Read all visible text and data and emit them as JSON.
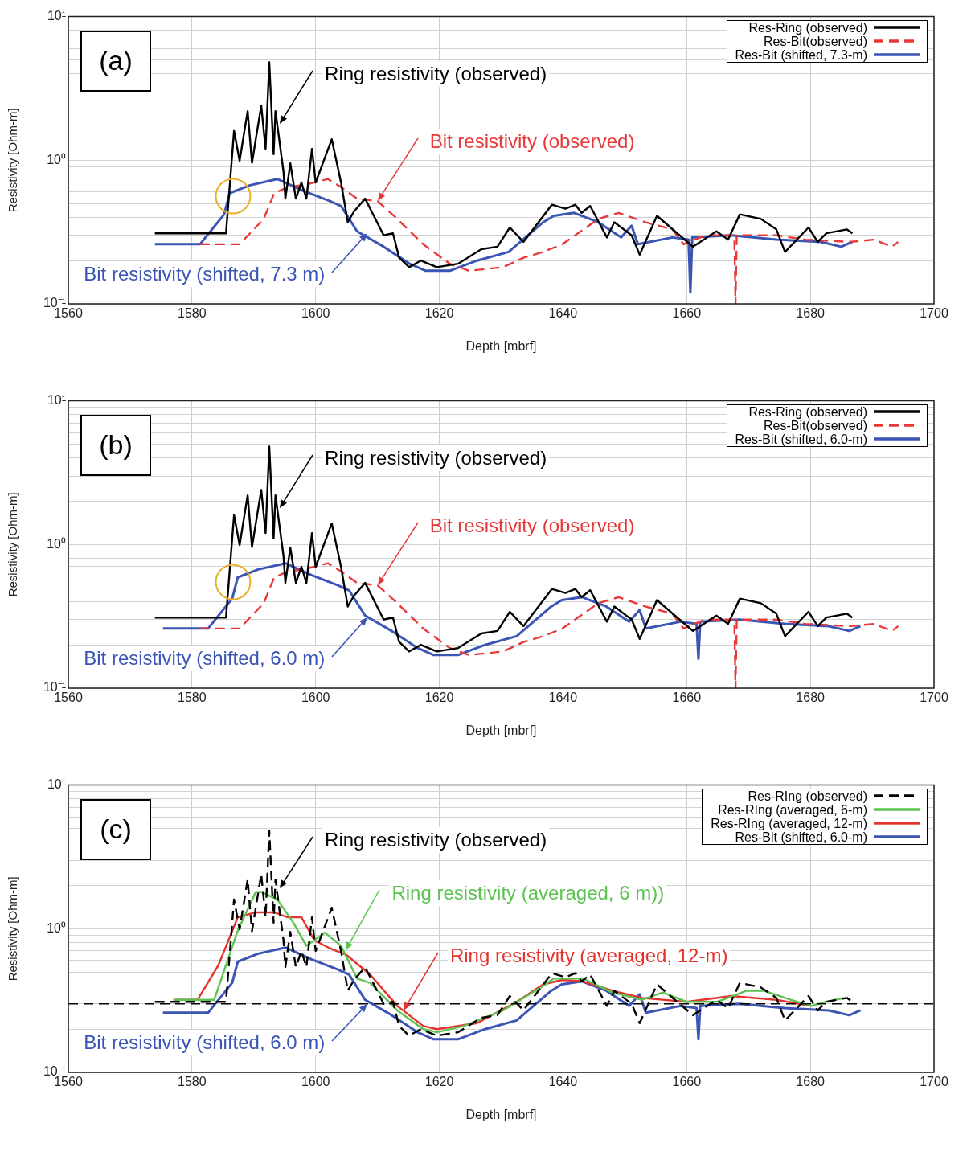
{
  "chart_data": [
    {
      "type": "line",
      "xlabel": "Depth [mbrf]",
      "ylabel": "Resistivity [Ohm-m]",
      "xlim": [
        1560,
        1700
      ],
      "xticks": [
        1560,
        1580,
        1600,
        1620,
        1640,
        1660,
        1680,
        1700
      ],
      "ylim": [
        0.1,
        10
      ],
      "log": "y",
      "grid": true,
      "legend": "top right",
      "marker": "none",
      "yticks": [
        {
          "value": 0.1,
          "label": "10⁻¹"
        },
        {
          "value": 0.2,
          "label": null
        },
        {
          "value": 0.3,
          "label": null
        },
        {
          "value": 0.4,
          "label": null
        },
        {
          "value": 0.5,
          "label": null
        },
        {
          "value": 0.6,
          "label": null
        },
        {
          "value": 0.7,
          "label": null
        },
        {
          "value": 0.8,
          "label": null
        },
        {
          "value": 0.9,
          "label": null
        },
        {
          "value": 1,
          "label": "10⁰"
        },
        {
          "value": 2,
          "label": null
        },
        {
          "value": 3,
          "label": null
        },
        {
          "value": 4,
          "label": null
        },
        {
          "value": 5,
          "label": null
        },
        {
          "value": 6,
          "label": null
        },
        {
          "value": 7,
          "label": null
        },
        {
          "value": 8,
          "label": null
        },
        {
          "value": 9,
          "label": null
        },
        {
          "value": 10,
          "label": "10¹"
        }
      ],
      "series": [
        {
          "name": "Res-Ring (observed)",
          "color": "#000000",
          "line_style": "solid",
          "x": [
            1574,
            1585.5,
            1586.8,
            1587.7,
            1589,
            1589.7,
            1591.2,
            1591.9,
            1592.5,
            1593.2,
            1593.5,
            1594.8,
            1595.1,
            1595.9,
            1596.8,
            1597.7,
            1598.5,
            1599.4,
            1600,
            1602.6,
            1604.1,
            1605.2,
            1606.2,
            1608,
            1611,
            1612.5,
            1613.5,
            1615.1,
            1617,
            1619.6,
            1623,
            1626.8,
            1629.4,
            1631.4,
            1633.6,
            1638.2,
            1640.4,
            1642,
            1643,
            1644.4,
            1647.1,
            1648.3,
            1651.1,
            1652.4,
            1655.2,
            1658.1,
            1661,
            1664.8,
            1666.7,
            1668.6,
            1672,
            1674.5,
            1675.9,
            1679.7,
            1681.2,
            1682.6,
            1685.9,
            1686.8
          ],
          "values": [
            0.31,
            0.31,
            1.6,
            0.99,
            2.2,
            0.96,
            2.4,
            1.2,
            4.8,
            1.1,
            2.2,
            0.83,
            0.54,
            0.95,
            0.54,
            0.7,
            0.54,
            1.2,
            0.7,
            1.4,
            0.7,
            0.37,
            0.44,
            0.54,
            0.3,
            0.31,
            0.21,
            0.18,
            0.2,
            0.18,
            0.19,
            0.24,
            0.25,
            0.34,
            0.27,
            0.49,
            0.46,
            0.49,
            0.43,
            0.48,
            0.29,
            0.37,
            0.3,
            0.22,
            0.41,
            0.32,
            0.25,
            0.32,
            0.28,
            0.42,
            0.39,
            0.33,
            0.23,
            0.34,
            0.27,
            0.31,
            0.33,
            0.31
          ]
        },
        {
          "name": "Res-Bit(observed)",
          "color": "#e8393a",
          "line_style": "dashed",
          "x": [
            1581.3,
            1587.7,
            1591.6,
            1593.3,
            1595.5,
            1598,
            1602,
            1604.1,
            1606.7,
            1610,
            1613.2,
            1617.4,
            1621.7,
            1624.8,
            1630.3,
            1633.7,
            1636.8,
            1639.9,
            1645.7,
            1649,
            1653.3,
            1657.7,
            1659.5,
            1663,
            1667.7,
            1667.9,
            1668.1,
            1674.5,
            1679.2,
            1686.5,
            1690.3,
            1693.2,
            1694.2
          ],
          "values": [
            0.26,
            0.26,
            0.39,
            0.59,
            0.65,
            0.67,
            0.74,
            0.65,
            0.54,
            0.52,
            0.39,
            0.26,
            0.19,
            0.17,
            0.18,
            0.21,
            0.23,
            0.26,
            0.39,
            0.43,
            0.37,
            0.33,
            0.26,
            0.3,
            0.3,
            0.1,
            0.3,
            0.3,
            0.28,
            0.27,
            0.28,
            0.25,
            0.27
          ]
        },
        {
          "name": "Res-Bit (shifted, 7.3-m)",
          "color": "#3a55b4",
          "line_style": "solid",
          "x": [
            1574,
            1581.3,
            1585.2,
            1586.1,
            1589.4,
            1593.8,
            1598.1,
            1602.3,
            1604.1,
            1606.7,
            1611,
            1615.2,
            1617.8,
            1621.7,
            1626.1,
            1631.2,
            1636.8,
            1638.5,
            1641.8,
            1645.7,
            1649.4,
            1651.1,
            1652.1,
            1657.7,
            1660.3,
            1660.6,
            1660.9,
            1667.2,
            1674.5,
            1681.7,
            1685,
            1686.8
          ],
          "values": [
            0.26,
            0.26,
            0.42,
            0.59,
            0.67,
            0.74,
            0.61,
            0.52,
            0.48,
            0.32,
            0.25,
            0.19,
            0.17,
            0.17,
            0.2,
            0.23,
            0.37,
            0.41,
            0.43,
            0.37,
            0.29,
            0.35,
            0.26,
            0.29,
            0.28,
            0.12,
            0.29,
            0.3,
            0.28,
            0.27,
            0.25,
            0.27
          ]
        }
      ],
      "annotations": [
        {
          "text": "Ring resistivity (observed)",
          "x": 1594.2,
          "y": 1.8
        },
        {
          "text": "Bit resistivity (observed)",
          "x": 1610,
          "y": 0.52
        },
        {
          "text": "Bit resistivity (shifted, 7.3 m)",
          "x": 1608.4,
          "y": 0.31
        },
        "(a)"
      ]
    },
    {
      "type": "line",
      "xlabel": "Depth [mbrf]",
      "ylabel": "Resistivity [Ohm-m]",
      "xlim": [
        1560,
        1700
      ],
      "xticks": [
        1560,
        1580,
        1600,
        1620,
        1640,
        1660,
        1680,
        1700
      ],
      "ylim": [
        0.1,
        10
      ],
      "log": "y",
      "grid": true,
      "legend": "top right",
      "marker": "none",
      "yticks": [
        {
          "value": 0.1,
          "label": "10⁻¹"
        },
        {
          "value": 0.2,
          "label": null
        },
        {
          "value": 0.3,
          "label": null
        },
        {
          "value": 0.4,
          "label": null
        },
        {
          "value": 0.5,
          "label": null
        },
        {
          "value": 0.6,
          "label": null
        },
        {
          "value": 0.7,
          "label": null
        },
        {
          "value": 0.8,
          "label": null
        },
        {
          "value": 0.9,
          "label": null
        },
        {
          "value": 1,
          "label": "10⁰"
        },
        {
          "value": 2,
          "label": null
        },
        {
          "value": 3,
          "label": null
        },
        {
          "value": 4,
          "label": null
        },
        {
          "value": 5,
          "label": null
        },
        {
          "value": 6,
          "label": null
        },
        {
          "value": 7,
          "label": null
        },
        {
          "value": 8,
          "label": null
        },
        {
          "value": 9,
          "label": null
        },
        {
          "value": 10,
          "label": "10¹"
        }
      ],
      "series": [
        {
          "name": "Res-Ring (observed)",
          "color": "#000000",
          "line_style": "solid",
          "x": [
            1574,
            1585.5,
            1586.8,
            1587.7,
            1589,
            1589.7,
            1591.2,
            1591.9,
            1592.5,
            1593.2,
            1593.5,
            1594.8,
            1595.1,
            1595.9,
            1596.8,
            1597.7,
            1598.5,
            1599.4,
            1600,
            1602.6,
            1604.1,
            1605.2,
            1606.2,
            1608,
            1611,
            1612.5,
            1613.5,
            1615.1,
            1617,
            1619.6,
            1623,
            1626.8,
            1629.4,
            1631.4,
            1633.6,
            1638.2,
            1640.4,
            1642,
            1643,
            1644.4,
            1647.1,
            1648.3,
            1651.1,
            1652.4,
            1655.2,
            1658.1,
            1661,
            1664.8,
            1666.7,
            1668.6,
            1672,
            1674.5,
            1675.9,
            1679.7,
            1681.2,
            1682.6,
            1685.9,
            1686.8
          ],
          "values": [
            0.31,
            0.31,
            1.6,
            0.99,
            2.2,
            0.96,
            2.4,
            1.2,
            4.8,
            1.1,
            2.2,
            0.83,
            0.54,
            0.95,
            0.54,
            0.7,
            0.54,
            1.2,
            0.7,
            1.4,
            0.7,
            0.37,
            0.44,
            0.54,
            0.3,
            0.31,
            0.21,
            0.18,
            0.2,
            0.18,
            0.19,
            0.24,
            0.25,
            0.34,
            0.27,
            0.49,
            0.46,
            0.49,
            0.43,
            0.48,
            0.29,
            0.37,
            0.3,
            0.22,
            0.41,
            0.32,
            0.25,
            0.32,
            0.28,
            0.42,
            0.39,
            0.33,
            0.23,
            0.34,
            0.27,
            0.31,
            0.33,
            0.31
          ]
        },
        {
          "name": "Res-Bit(observed)",
          "color": "#e8393a",
          "line_style": "dashed",
          "x": [
            1581.3,
            1587.7,
            1591.6,
            1593.3,
            1595.5,
            1598,
            1602,
            1604.1,
            1606.7,
            1610,
            1613.2,
            1617.4,
            1621.7,
            1624.8,
            1630.3,
            1633.7,
            1636.8,
            1639.9,
            1645.7,
            1649,
            1653.3,
            1657.7,
            1659.5,
            1663,
            1667.7,
            1667.9,
            1668.1,
            1674.5,
            1679.2,
            1686.5,
            1690.3,
            1693.2,
            1694.2
          ],
          "values": [
            0.26,
            0.26,
            0.39,
            0.59,
            0.65,
            0.67,
            0.74,
            0.65,
            0.54,
            0.52,
            0.39,
            0.26,
            0.19,
            0.17,
            0.18,
            0.21,
            0.23,
            0.26,
            0.39,
            0.43,
            0.37,
            0.33,
            0.26,
            0.3,
            0.3,
            0.1,
            0.3,
            0.3,
            0.28,
            0.27,
            0.28,
            0.25,
            0.27
          ]
        },
        {
          "name": "Res-Bit (shifted, 6.0-m)",
          "color": "#3a55b4",
          "line_style": "solid",
          "x": [
            1575.3,
            1582.6,
            1586.5,
            1587.4,
            1590.7,
            1595.1,
            1599.4,
            1603.6,
            1605.4,
            1608,
            1612.3,
            1616.5,
            1619.1,
            1623,
            1627.4,
            1632.5,
            1638.1,
            1639.8,
            1643.1,
            1647,
            1650.7,
            1652.4,
            1653.4,
            1659,
            1661.6,
            1661.9,
            1662.2,
            1668.5,
            1675.8,
            1683,
            1686.3,
            1688.1
          ],
          "values": [
            0.26,
            0.26,
            0.42,
            0.59,
            0.67,
            0.74,
            0.61,
            0.52,
            0.48,
            0.32,
            0.25,
            0.19,
            0.17,
            0.17,
            0.2,
            0.23,
            0.37,
            0.41,
            0.43,
            0.37,
            0.29,
            0.35,
            0.26,
            0.29,
            0.28,
            0.16,
            0.29,
            0.3,
            0.28,
            0.27,
            0.25,
            0.27
          ]
        }
      ],
      "annotations": [
        {
          "text": "Ring resistivity (observed)",
          "x": 1594.2,
          "y": 1.8
        },
        {
          "text": "Bit resistivity (observed)",
          "x": 1610,
          "y": 0.52
        },
        {
          "text": "Bit resistivity (shifted, 6.0 m)",
          "x": 1608.4,
          "y": 0.31
        },
        "(b)"
      ]
    },
    {
      "type": "line",
      "xlabel": "Depth [mbrf]",
      "ylabel": "Resistivity [Ohm-m]",
      "xlim": [
        1560,
        1700
      ],
      "xticks": [
        1560,
        1580,
        1600,
        1620,
        1640,
        1660,
        1680,
        1700
      ],
      "ylim": [
        0.1,
        10
      ],
      "log": "y",
      "grid": true,
      "legend": "top right",
      "marker": "none",
      "yticks": [
        {
          "value": 0.1,
          "label": "10⁻¹"
        },
        {
          "value": 0.2,
          "label": null
        },
        {
          "value": 0.3,
          "label": null
        },
        {
          "value": 0.4,
          "label": null
        },
        {
          "value": 0.5,
          "label": null
        },
        {
          "value": 0.6,
          "label": null
        },
        {
          "value": 0.7,
          "label": null
        },
        {
          "value": 0.8,
          "label": null
        },
        {
          "value": 0.9,
          "label": null
        },
        {
          "value": 1,
          "label": "10⁰"
        },
        {
          "value": 2,
          "label": null
        },
        {
          "value": 3,
          "label": null
        },
        {
          "value": 4,
          "label": null
        },
        {
          "value": 5,
          "label": null
        },
        {
          "value": 6,
          "label": null
        },
        {
          "value": 7,
          "label": null
        },
        {
          "value": 8,
          "label": null
        },
        {
          "value": 9,
          "label": null
        },
        {
          "value": 10,
          "label": "10¹"
        }
      ],
      "ref_lines": [
        {
          "axis": "y",
          "value": 0.3,
          "color": "#000000",
          "line_style": "dashed"
        }
      ],
      "series": [
        {
          "name": "Res-RIng (observed)",
          "color": "#000000",
          "line_style": "dashed",
          "x": [
            1574,
            1585.5,
            1586.8,
            1587.7,
            1589,
            1589.7,
            1591.2,
            1591.9,
            1592.5,
            1593.2,
            1593.5,
            1594.8,
            1595.1,
            1595.9,
            1596.8,
            1597.7,
            1598.5,
            1599.4,
            1600,
            1602.6,
            1604.1,
            1605.2,
            1606.2,
            1608,
            1611,
            1612.5,
            1613.5,
            1615.1,
            1617,
            1619.6,
            1623,
            1626.8,
            1629.4,
            1631.4,
            1633.6,
            1638.2,
            1640.4,
            1642,
            1643,
            1644.4,
            1647.1,
            1648.3,
            1651.1,
            1652.4,
            1655.2,
            1658.1,
            1661,
            1664.8,
            1666.7,
            1668.6,
            1672,
            1674.5,
            1675.9,
            1679.7,
            1681.2,
            1682.6,
            1685.9,
            1686.8
          ],
          "values": [
            0.31,
            0.31,
            1.6,
            0.99,
            2.2,
            0.96,
            2.4,
            1.2,
            4.8,
            1.1,
            2.2,
            0.83,
            0.54,
            0.95,
            0.54,
            0.7,
            0.54,
            1.2,
            0.7,
            1.4,
            0.7,
            0.37,
            0.44,
            0.54,
            0.3,
            0.31,
            0.21,
            0.18,
            0.2,
            0.18,
            0.19,
            0.24,
            0.25,
            0.34,
            0.27,
            0.49,
            0.46,
            0.49,
            0.43,
            0.48,
            0.29,
            0.37,
            0.3,
            0.22,
            0.41,
            0.32,
            0.25,
            0.32,
            0.28,
            0.42,
            0.39,
            0.33,
            0.23,
            0.34,
            0.27,
            0.31,
            0.33,
            0.31
          ]
        },
        {
          "name": "Res-RIng (averaged, 6-m)",
          "color": "#5cc250",
          "line_style": "solid",
          "x": [
            1577,
            1583.6,
            1587.4,
            1590.3,
            1591.2,
            1593.8,
            1596.4,
            1598.5,
            1601.5,
            1604.1,
            1606.7,
            1608.8,
            1613.2,
            1617.4,
            1619.6,
            1623.9,
            1630.3,
            1636.8,
            1638.5,
            1643.2,
            1648,
            1652.8,
            1656.1,
            1660,
            1665,
            1669.7,
            1672.5,
            1676.8,
            1680.1,
            1682.6,
            1685.5
          ],
          "values": [
            0.32,
            0.32,
            0.97,
            1.8,
            1.8,
            1.6,
            1.1,
            0.76,
            0.94,
            0.76,
            0.45,
            0.42,
            0.27,
            0.2,
            0.19,
            0.21,
            0.27,
            0.4,
            0.45,
            0.45,
            0.36,
            0.32,
            0.36,
            0.31,
            0.31,
            0.37,
            0.37,
            0.32,
            0.29,
            0.31,
            0.33
          ]
        },
        {
          "name": "Res-RIng (averaged, 12-m)",
          "color": "#e5322d",
          "line_style": "solid",
          "x": [
            1577,
            1580.9,
            1584.3,
            1587.4,
            1590.3,
            1593.3,
            1595.5,
            1597.7,
            1599.8,
            1602.3,
            1604.9,
            1608.8,
            1613.2,
            1617.4,
            1619.6,
            1626.1,
            1632.5,
            1636.8,
            1639.9,
            1643.2,
            1648,
            1652.8,
            1660,
            1667.2,
            1674.5,
            1680.1
          ],
          "values": [
            0.32,
            0.32,
            0.56,
            1.2,
            1.3,
            1.3,
            1.2,
            1.2,
            0.83,
            0.73,
            0.66,
            0.48,
            0.29,
            0.21,
            0.2,
            0.22,
            0.31,
            0.41,
            0.44,
            0.43,
            0.37,
            0.33,
            0.31,
            0.34,
            0.32,
            0.29
          ]
        },
        {
          "name": "Res-Bit (shifted, 6.0-m)",
          "color": "#3a55b4",
          "line_style": "solid",
          "x": [
            1575.3,
            1582.6,
            1586.5,
            1587.4,
            1590.7,
            1595.1,
            1599.4,
            1603.6,
            1605.4,
            1608,
            1612.3,
            1616.5,
            1619.1,
            1623,
            1627.4,
            1632.5,
            1638.1,
            1639.8,
            1643.1,
            1647,
            1650.7,
            1652.4,
            1653.4,
            1659,
            1661.6,
            1661.9,
            1662.2,
            1668.5,
            1675.8,
            1683,
            1686.3,
            1688.1
          ],
          "values": [
            0.26,
            0.26,
            0.42,
            0.59,
            0.67,
            0.74,
            0.61,
            0.52,
            0.48,
            0.32,
            0.25,
            0.19,
            0.17,
            0.17,
            0.2,
            0.23,
            0.37,
            0.41,
            0.43,
            0.37,
            0.29,
            0.35,
            0.26,
            0.29,
            0.28,
            0.17,
            0.29,
            0.3,
            0.28,
            0.27,
            0.25,
            0.27
          ]
        }
      ],
      "annotations": [
        {
          "text": "Ring resistivity (observed)",
          "x": 1594.2,
          "y": 1.9
        },
        {
          "text": "Ring resistivity (averaged, 6 m))",
          "x": 1604.9,
          "y": 0.71
        },
        {
          "text": "Ring resistivity (averaged, 12-m)",
          "x": 1614.2,
          "y": 0.27
        },
        {
          "text": "Bit resistivity (shifted, 6.0 m)",
          "x": 1608.4,
          "y": 0.3
        },
        "(c)"
      ]
    }
  ]
}
